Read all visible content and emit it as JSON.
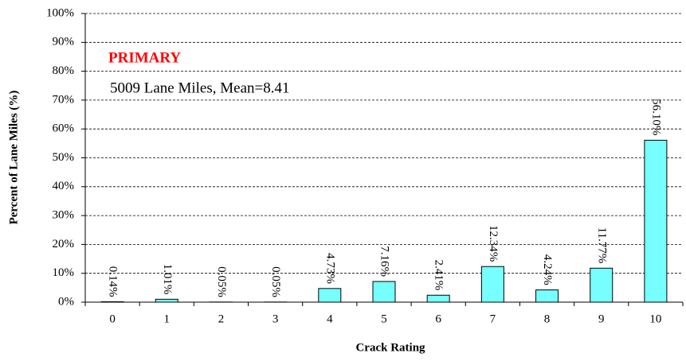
{
  "chart_data": {
    "type": "bar",
    "categories": [
      "0",
      "1",
      "2",
      "3",
      "4",
      "5",
      "6",
      "7",
      "8",
      "9",
      "10"
    ],
    "values": [
      0.14,
      1.01,
      0.05,
      0.05,
      4.73,
      7.16,
      2.41,
      12.34,
      4.24,
      11.77,
      56.1
    ],
    "value_labels": [
      "0.14%",
      "1.01%",
      "0.05%",
      "0.05%",
      "4.73%",
      "7.16%",
      "2.41%",
      "12.34%",
      "4.24%",
      "11.77%",
      "56.10%"
    ],
    "color": "#77ffff",
    "x_label": "Crack Rating",
    "y_label": "Percent of Lane Miles (%)",
    "annotations": [
      "PRIMARY",
      "5009 Lane Miles, Mean=8.41"
    ],
    "ylim": [
      0,
      100
    ],
    "yticks": [
      {
        "value": 0,
        "label": "0%"
      },
      {
        "value": 10,
        "label": "10%"
      },
      {
        "value": 20,
        "label": "20%"
      },
      {
        "value": 30,
        "label": "30%"
      },
      {
        "value": 40,
        "label": "40%"
      },
      {
        "value": 50,
        "label": "50%"
      },
      {
        "value": 60,
        "label": "60%"
      },
      {
        "value": 70,
        "label": "70%"
      },
      {
        "value": 80,
        "label": "80%"
      },
      {
        "value": 90,
        "label": "90%"
      },
      {
        "value": 100,
        "label": "100%"
      }
    ],
    "grid": true
  }
}
